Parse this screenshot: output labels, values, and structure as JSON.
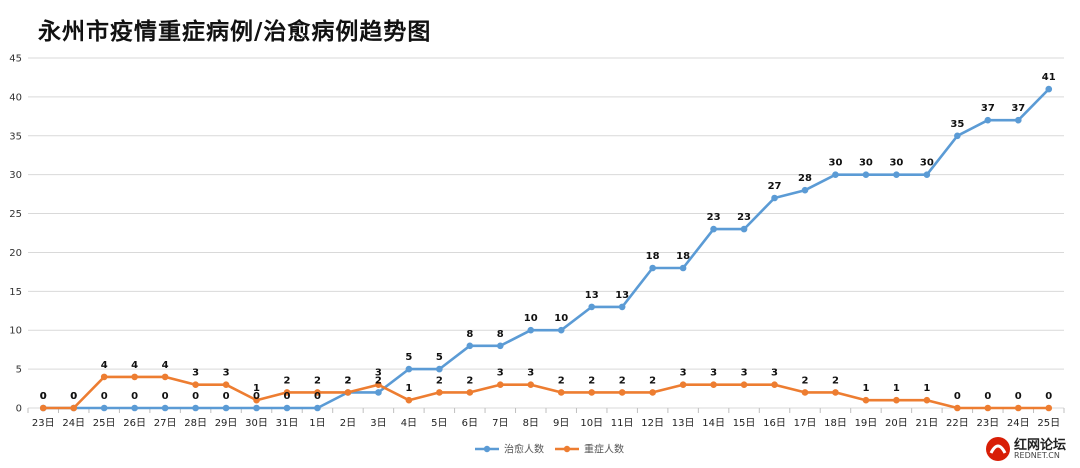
{
  "title": "永州市疫情重症病例/治愈病例趋势图",
  "watermark": {
    "name": "红网论坛",
    "site": "REDNET.CN"
  },
  "chart_data": {
    "type": "line",
    "title": "永州市疫情重症病例/治愈病例趋势图",
    "categories": [
      "23日",
      "24日",
      "25日",
      "26日",
      "27日",
      "28日",
      "29日",
      "30日",
      "31日",
      "1日",
      "2日",
      "3日",
      "4日",
      "5日",
      "6日",
      "7日",
      "8日",
      "9日",
      "10日",
      "11日",
      "12日",
      "13日",
      "14日",
      "15日",
      "16日",
      "17日",
      "18日",
      "19日",
      "20日",
      "21日",
      "22日",
      "23日",
      "24日",
      "25日"
    ],
    "ylim": [
      0,
      45
    ],
    "yticks": [
      0,
      5,
      10,
      15,
      20,
      25,
      30,
      35,
      40,
      45
    ],
    "grid": true,
    "legend": "bottom",
    "series": [
      {
        "name": "治愈人数",
        "color": "#5b9bd5",
        "values": [
          0,
          0,
          0,
          0,
          0,
          0,
          0,
          0,
          0,
          0,
          2,
          2,
          5,
          5,
          8,
          8,
          10,
          10,
          13,
          13,
          18,
          18,
          23,
          23,
          27,
          28,
          30,
          30,
          30,
          30,
          35,
          37,
          37,
          41
        ]
      },
      {
        "name": "重症人数",
        "color": "#ed7d31",
        "values": [
          0,
          0,
          4,
          4,
          4,
          3,
          3,
          1,
          2,
          2,
          2,
          3,
          1,
          2,
          2,
          3,
          3,
          2,
          2,
          2,
          2,
          3,
          3,
          3,
          3,
          2,
          2,
          1,
          1,
          1,
          0,
          0,
          0,
          0
        ]
      }
    ]
  }
}
